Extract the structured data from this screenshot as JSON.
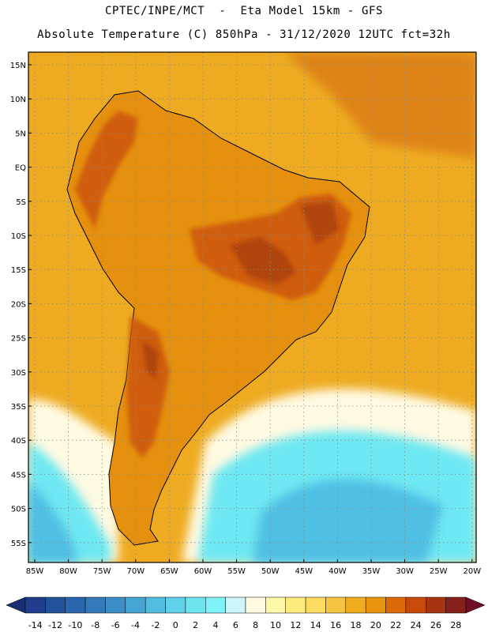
{
  "header": {
    "line1": "CPTEC/INPE/MCT  -  Eta Model 15km - GFS",
    "line2": "Absolute Temperature (C) 850hPa - 31/12/2020 12UTC fct=32h"
  },
  "axes": {
    "lat_labels": [
      "15N",
      "10N",
      "5N",
      "EQ",
      "5S",
      "10S",
      "15S",
      "20S",
      "25S",
      "30S",
      "35S",
      "40S",
      "45S",
      "50S",
      "55S"
    ],
    "lon_labels": [
      "85W",
      "80W",
      "75W",
      "70W",
      "65W",
      "60W",
      "55W",
      "50W",
      "45W",
      "40W",
      "35W",
      "30W",
      "25W",
      "20W"
    ]
  },
  "colorbar": {
    "labels": [
      "-14",
      "-12",
      "-10",
      "-8",
      "-6",
      "-4",
      "-2",
      "0",
      "2",
      "4",
      "6",
      "8",
      "10",
      "12",
      "14",
      "16",
      "18",
      "20",
      "22",
      "24",
      "26",
      "28"
    ],
    "colors": [
      "#1f3d8c",
      "#23529c",
      "#2a66ad",
      "#3479b9",
      "#3d8dc6",
      "#46a5d3",
      "#52bde0",
      "#5fd1e8",
      "#6de3ee",
      "#7ef2f6",
      "#cdf5fa",
      "#fffae2",
      "#fff8a8",
      "#feeb7e",
      "#fcdb5f",
      "#f5c542",
      "#f0ac1c",
      "#e8940c",
      "#dc6a08",
      "#c74a08",
      "#a73410",
      "#86201a"
    ],
    "left_arrow_color": "#1a2f70",
    "right_arrow_color": "#6e0f25"
  },
  "map_colors": {
    "ocean_warm": "#eeab22",
    "land_base": "#e5900e",
    "hot": "#cf5d0a",
    "hotter": "#b04510",
    "cool_band": "#fffae2",
    "cold": "#6ee8f2",
    "colder": "#4fbfe3"
  }
}
